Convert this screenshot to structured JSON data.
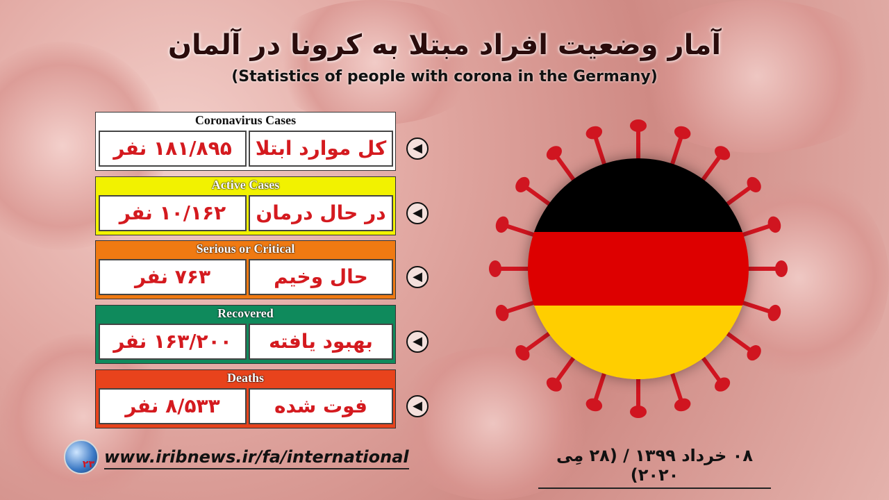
{
  "title": "آمار وضعیت افراد مبتلا به کرونا در آلمان",
  "subtitle": "(Statistics of people with corona in the Germany)",
  "cards": [
    {
      "header": "Coronavirus Cases",
      "label": "کل موارد ابتلا",
      "value": "۱۸۱/۸۹۵ نفر",
      "color": "#ffffff",
      "header_color": "#111111"
    },
    {
      "header": "Active Cases",
      "label": "در حال درمان",
      "value": "۱۰/۱۶۲ نفر",
      "color": "#f2f200",
      "header_color": "#ffffff"
    },
    {
      "header": "Serious or Critical",
      "label": "حال وخیم",
      "value": "۷۶۳ نفر",
      "color": "#f07a12",
      "header_color": "#ffffff"
    },
    {
      "header": "Recovered",
      "label": "بهبود یافته",
      "value": "۱۶۳/۲۰۰ نفر",
      "color": "#0f8a5c",
      "header_color": "#ffffff"
    },
    {
      "header": "Deaths",
      "label": "فوت شده",
      "value": "۸/۵۳۳ نفر",
      "color": "#e8431c",
      "header_color": "#ffffff"
    }
  ],
  "arrow_icon": "chevron-left-circle-icon",
  "flag": {
    "country": "Germany",
    "colors": [
      "#000000",
      "#dd0000",
      "#ffce00"
    ]
  },
  "footer": {
    "url": "www.iribnews.ir/fa/international",
    "date": "۰۸ خرداد ۱۳۹۹ / (۲۸ مِی ۲۰۲۰)",
    "logo_text": "۲۳"
  }
}
